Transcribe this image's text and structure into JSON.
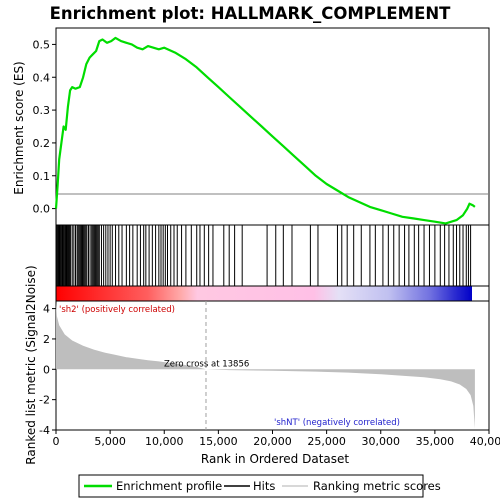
{
  "chart_data": {
    "type": "line",
    "title": "Enrichment plot: HALLMARK_COMPLEMENT",
    "xlabel": "Rank in Ordered Dataset",
    "ylabel_top": "Enrichment score (ES)",
    "ylabel_bottom": "Ranked list metric (Signal2Noise)",
    "xlim": [
      0,
      40000
    ],
    "x_ticks": [
      0,
      5000,
      10000,
      15000,
      20000,
      25000,
      30000,
      35000,
      40000
    ],
    "x_tick_labels": [
      "0",
      "5,000",
      "10,000",
      "15,000",
      "20,000",
      "25,000",
      "30,000",
      "35,000",
      "40,000"
    ],
    "es_ylim": [
      -0.05,
      0.55
    ],
    "es_ticks": [
      0.0,
      0.1,
      0.2,
      0.3,
      0.4,
      0.5
    ],
    "es_tick_labels": [
      "0.0",
      "0.1",
      "0.2",
      "0.3",
      "0.4",
      "0.5"
    ],
    "metric_ylim": [
      -4,
      4.5
    ],
    "metric_ticks": [
      -4,
      -2,
      0,
      2,
      4
    ],
    "metric_tick_labels": [
      "-4",
      "-2",
      "0",
      "2",
      "4"
    ],
    "total_genes": 38700,
    "zero_cross_rank": 13856,
    "zero_cross_label": "Zero cross at 13856",
    "positive_label": "'sh2' (positively correlated)",
    "negative_label": "'shNT' (negatively correlated)",
    "grid": false,
    "legend_position": "bottom",
    "colors": {
      "es_line": "#00dd00",
      "hits": "#000000",
      "metric_fill": "#bebebe",
      "positive_text": "#cc0000",
      "negative_text": "#2222cc",
      "zero_line": "#808080"
    },
    "es_curve": [
      [
        0,
        0.0
      ],
      [
        150,
        0.07
      ],
      [
        300,
        0.15
      ],
      [
        500,
        0.2
      ],
      [
        700,
        0.25
      ],
      [
        900,
        0.24
      ],
      [
        1100,
        0.31
      ],
      [
        1300,
        0.36
      ],
      [
        1500,
        0.37
      ],
      [
        1800,
        0.365
      ],
      [
        2200,
        0.37
      ],
      [
        2500,
        0.4
      ],
      [
        2800,
        0.44
      ],
      [
        3100,
        0.46
      ],
      [
        3400,
        0.47
      ],
      [
        3700,
        0.48
      ],
      [
        4000,
        0.51
      ],
      [
        4300,
        0.515
      ],
      [
        4700,
        0.505
      ],
      [
        5100,
        0.51
      ],
      [
        5500,
        0.52
      ],
      [
        6000,
        0.51
      ],
      [
        6500,
        0.505
      ],
      [
        7000,
        0.5
      ],
      [
        7500,
        0.49
      ],
      [
        8000,
        0.485
      ],
      [
        8500,
        0.495
      ],
      [
        9000,
        0.49
      ],
      [
        9500,
        0.485
      ],
      [
        10000,
        0.49
      ],
      [
        11000,
        0.475
      ],
      [
        12000,
        0.455
      ],
      [
        13000,
        0.43
      ],
      [
        14000,
        0.4
      ],
      [
        15000,
        0.37
      ],
      [
        16000,
        0.34
      ],
      [
        17000,
        0.31
      ],
      [
        18000,
        0.28
      ],
      [
        19000,
        0.25
      ],
      [
        20000,
        0.22
      ],
      [
        21000,
        0.19
      ],
      [
        22000,
        0.16
      ],
      [
        23000,
        0.13
      ],
      [
        24000,
        0.1
      ],
      [
        25000,
        0.075
      ],
      [
        26000,
        0.055
      ],
      [
        27000,
        0.035
      ],
      [
        28000,
        0.02
      ],
      [
        29000,
        0.005
      ],
      [
        30000,
        -0.005
      ],
      [
        31000,
        -0.015
      ],
      [
        32000,
        -0.025
      ],
      [
        33000,
        -0.03
      ],
      [
        34000,
        -0.035
      ],
      [
        35000,
        -0.04
      ],
      [
        36000,
        -0.045
      ],
      [
        37000,
        -0.035
      ],
      [
        37600,
        -0.02
      ],
      [
        38000,
        0.0
      ],
      [
        38200,
        0.015
      ],
      [
        38500,
        0.01
      ],
      [
        38700,
        0.005
      ]
    ],
    "hit_ranks": [
      40,
      120,
      200,
      280,
      350,
      430,
      520,
      600,
      680,
      760,
      850,
      930,
      1010,
      1100,
      1180,
      1260,
      1350,
      1500,
      1650,
      1800,
      1950,
      2050,
      2150,
      2250,
      2350,
      2450,
      2550,
      2650,
      2750,
      2850,
      3000,
      3150,
      3300,
      3400,
      3500,
      3600,
      3700,
      3800,
      3900,
      4000,
      4200,
      4400,
      4600,
      4800,
      5000,
      5200,
      5500,
      5800,
      6100,
      6500,
      6800,
      7100,
      7500,
      7800,
      8100,
      8300,
      8600,
      8900,
      9200,
      9500,
      9700,
      9900,
      10100,
      10300,
      10600,
      10900,
      11200,
      11600,
      12000,
      12500,
      13000,
      13300,
      13700,
      14100,
      14500,
      15500,
      16000,
      16500,
      17200,
      19500,
      20300,
      21000,
      21800,
      23500,
      24200,
      26000,
      26400,
      26900,
      27500,
      28200,
      29000,
      29500,
      30200,
      30700,
      31200,
      31700,
      32200,
      32600,
      33100,
      33500,
      34000,
      34500,
      35000,
      35500,
      35900,
      36300,
      36700,
      37000,
      37300,
      37600,
      37900,
      38100,
      38300
    ],
    "metric_curve": [
      [
        0,
        4.4
      ],
      [
        80,
        3.5
      ],
      [
        300,
        2.9
      ],
      [
        800,
        2.3
      ],
      [
        1500,
        1.9
      ],
      [
        2500,
        1.55
      ],
      [
        3500,
        1.3
      ],
      [
        4500,
        1.1
      ],
      [
        5500,
        0.95
      ],
      [
        6500,
        0.8
      ],
      [
        7500,
        0.7
      ],
      [
        8500,
        0.6
      ],
      [
        9500,
        0.52
      ],
      [
        10500,
        0.42
      ],
      [
        11500,
        0.33
      ],
      [
        12500,
        0.22
      ],
      [
        13200,
        0.12
      ],
      [
        13856,
        0.0
      ],
      [
        16000,
        -0.05
      ],
      [
        20000,
        -0.1
      ],
      [
        24000,
        -0.15
      ],
      [
        27000,
        -0.22
      ],
      [
        30000,
        -0.32
      ],
      [
        32000,
        -0.42
      ],
      [
        34000,
        -0.52
      ],
      [
        35500,
        -0.65
      ],
      [
        36500,
        -0.8
      ],
      [
        37300,
        -1.0
      ],
      [
        37900,
        -1.3
      ],
      [
        38300,
        -1.7
      ],
      [
        38550,
        -2.4
      ],
      [
        38700,
        -3.9
      ]
    ]
  },
  "legend": {
    "items": [
      {
        "label": "Enrichment profile",
        "color": "#00dd00",
        "kind": "line"
      },
      {
        "label": "Hits",
        "color": "#000000",
        "kind": "line"
      },
      {
        "label": "Ranking metric scores",
        "color": "#cccccc",
        "kind": "line"
      }
    ]
  }
}
